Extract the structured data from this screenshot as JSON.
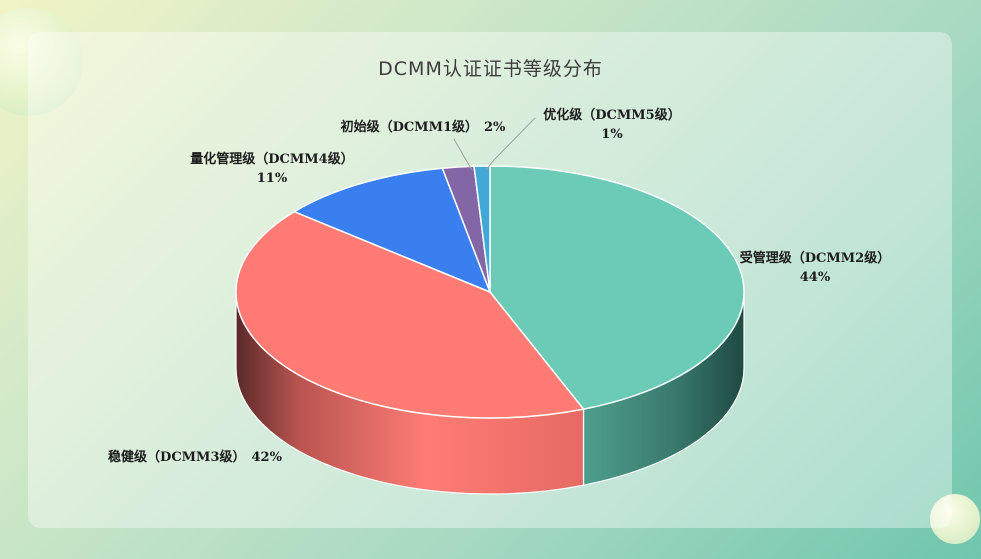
{
  "chart_data": {
    "type": "pie",
    "title": "DCMM认证证书等级分布",
    "slices": [
      {
        "label": "受管理级（DCMM2级）",
        "value": 44,
        "value_label": "44%",
        "color": "#6ccbb6"
      },
      {
        "label": "稳健级（DCMM3级）",
        "value": 42,
        "value_label": "42%",
        "color": "#ff7b73"
      },
      {
        "label": "量化管理级（DCMM4级）",
        "value": 11,
        "value_label": "11%",
        "color": "#3a7fef"
      },
      {
        "label": "初始级（DCMM1级）",
        "value": 2,
        "value_label": "2%",
        "color": "#8366a6"
      },
      {
        "label": "优化级（DCMM5级）",
        "value": 1,
        "value_label": "1%",
        "color": "#42a8d6"
      }
    ],
    "legend": "none"
  }
}
